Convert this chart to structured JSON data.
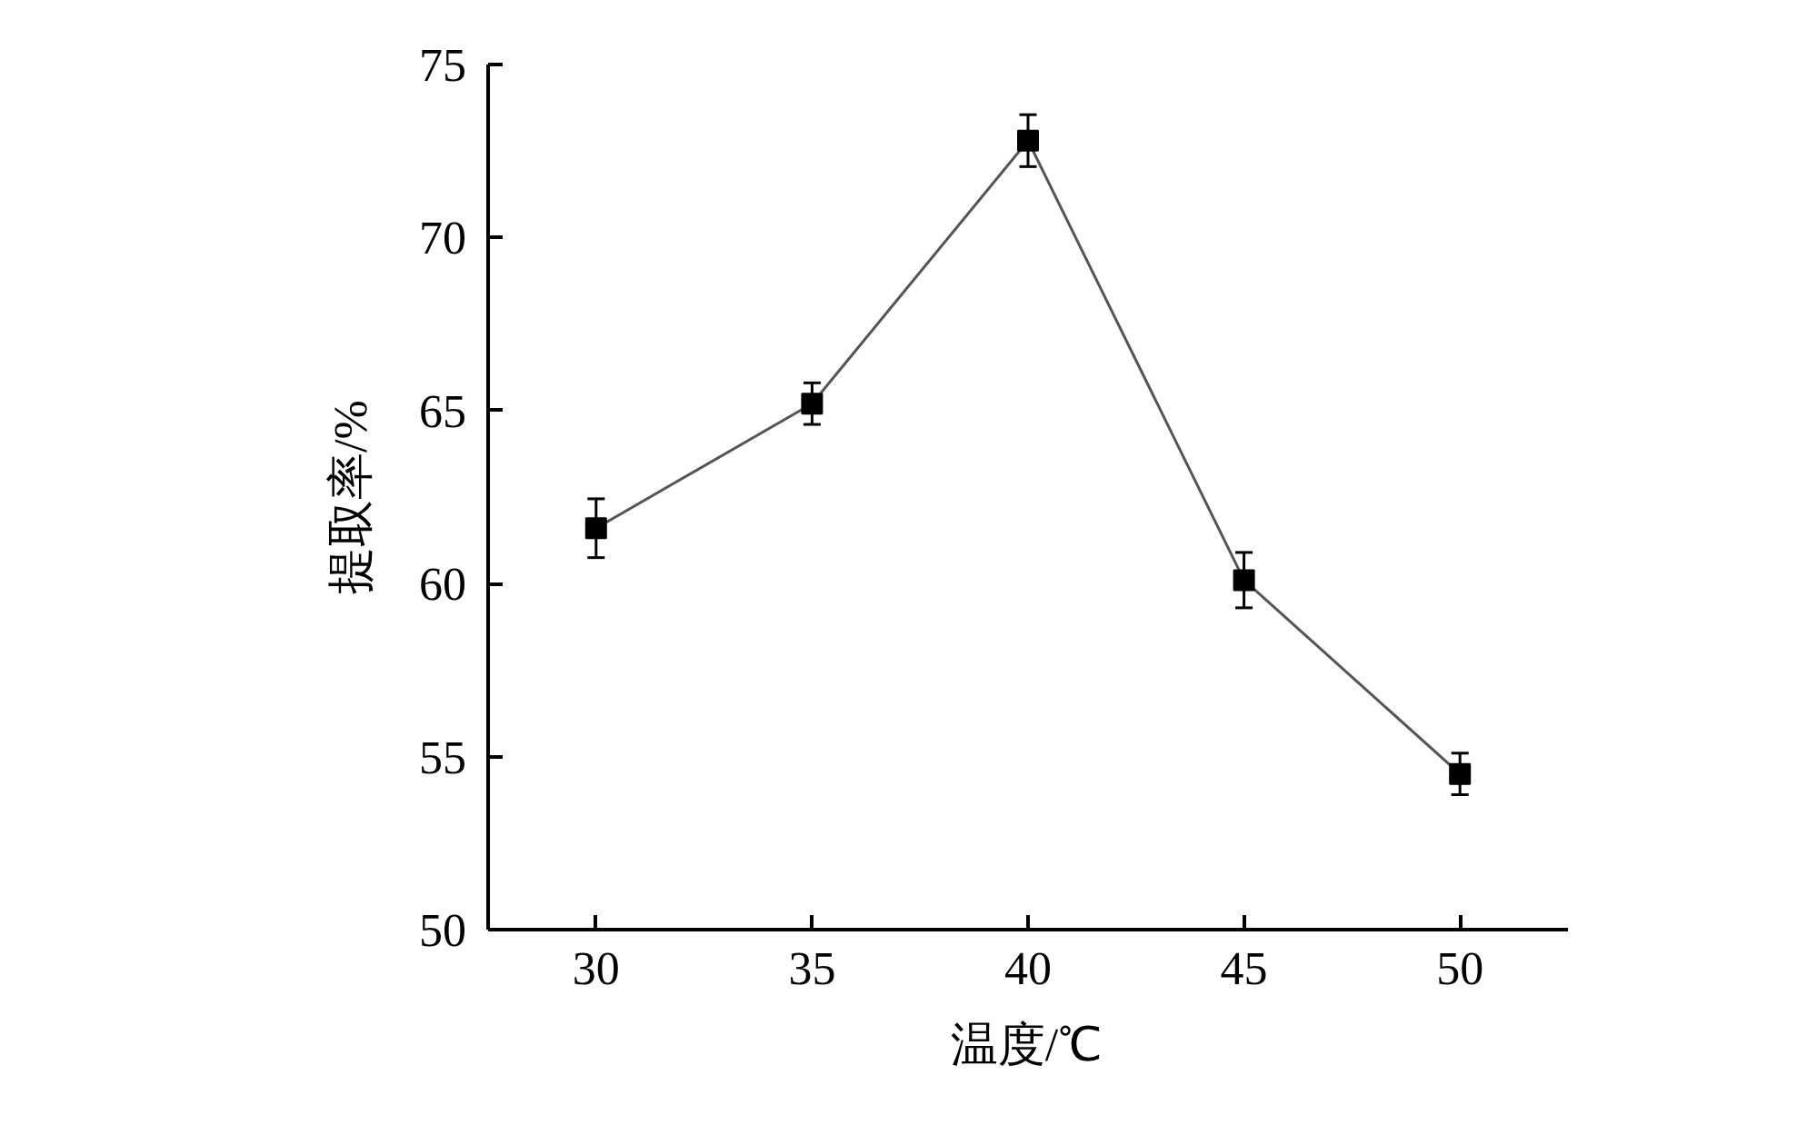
{
  "chart_data": {
    "type": "line",
    "xlabel": "温度/℃",
    "ylabel": "提取率/%",
    "x": [
      30,
      35,
      40,
      45,
      50
    ],
    "series": [
      {
        "color": "#000000",
        "values": [
          61.6,
          65.2,
          72.8,
          60.1,
          54.5
        ],
        "errors": [
          0.85,
          0.6,
          0.75,
          0.8,
          0.6
        ]
      }
    ],
    "xlim": [
      27.5,
      52.5
    ],
    "xticks": [
      30,
      35,
      40,
      45,
      50
    ],
    "ylim": [
      50,
      75
    ],
    "yticks": [
      50,
      55,
      60,
      65,
      70,
      75
    ],
    "marker": "square",
    "line_style": "solid",
    "grid": false
  }
}
